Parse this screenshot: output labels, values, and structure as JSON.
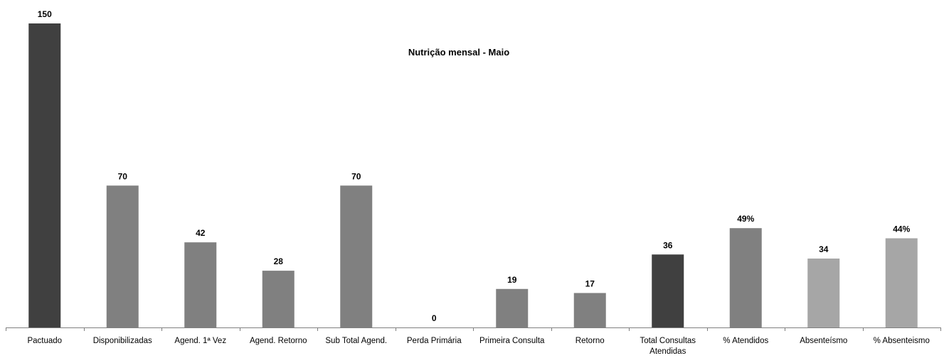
{
  "chart_data": {
    "type": "bar",
    "title": "Nutrição mensal  - Maio",
    "categories": [
      "Pactuado",
      "Disponibilizadas",
      "Agend. 1ª Vez",
      "Agend. Retorno",
      "Sub Total Agend.",
      "Perda Primária",
      "Primeira Consulta",
      "Retorno",
      "Total Consultas Atendidas",
      "% Atendidos",
      "Absenteísmo",
      "% Absenteismo"
    ],
    "values": [
      150,
      70,
      42,
      28,
      70,
      0,
      19,
      17,
      36,
      49,
      34,
      44
    ],
    "value_labels": [
      "150",
      "70",
      "42",
      "28",
      "70",
      "0",
      "19",
      "17",
      "36",
      "49%",
      "34",
      "44%"
    ],
    "colors": [
      "#404040",
      "#808080",
      "#808080",
      "#808080",
      "#808080",
      "#808080",
      "#808080",
      "#808080",
      "#404040",
      "#808080",
      "#a6a6a6",
      "#a6a6a6"
    ],
    "ylim": [
      0,
      150
    ]
  }
}
